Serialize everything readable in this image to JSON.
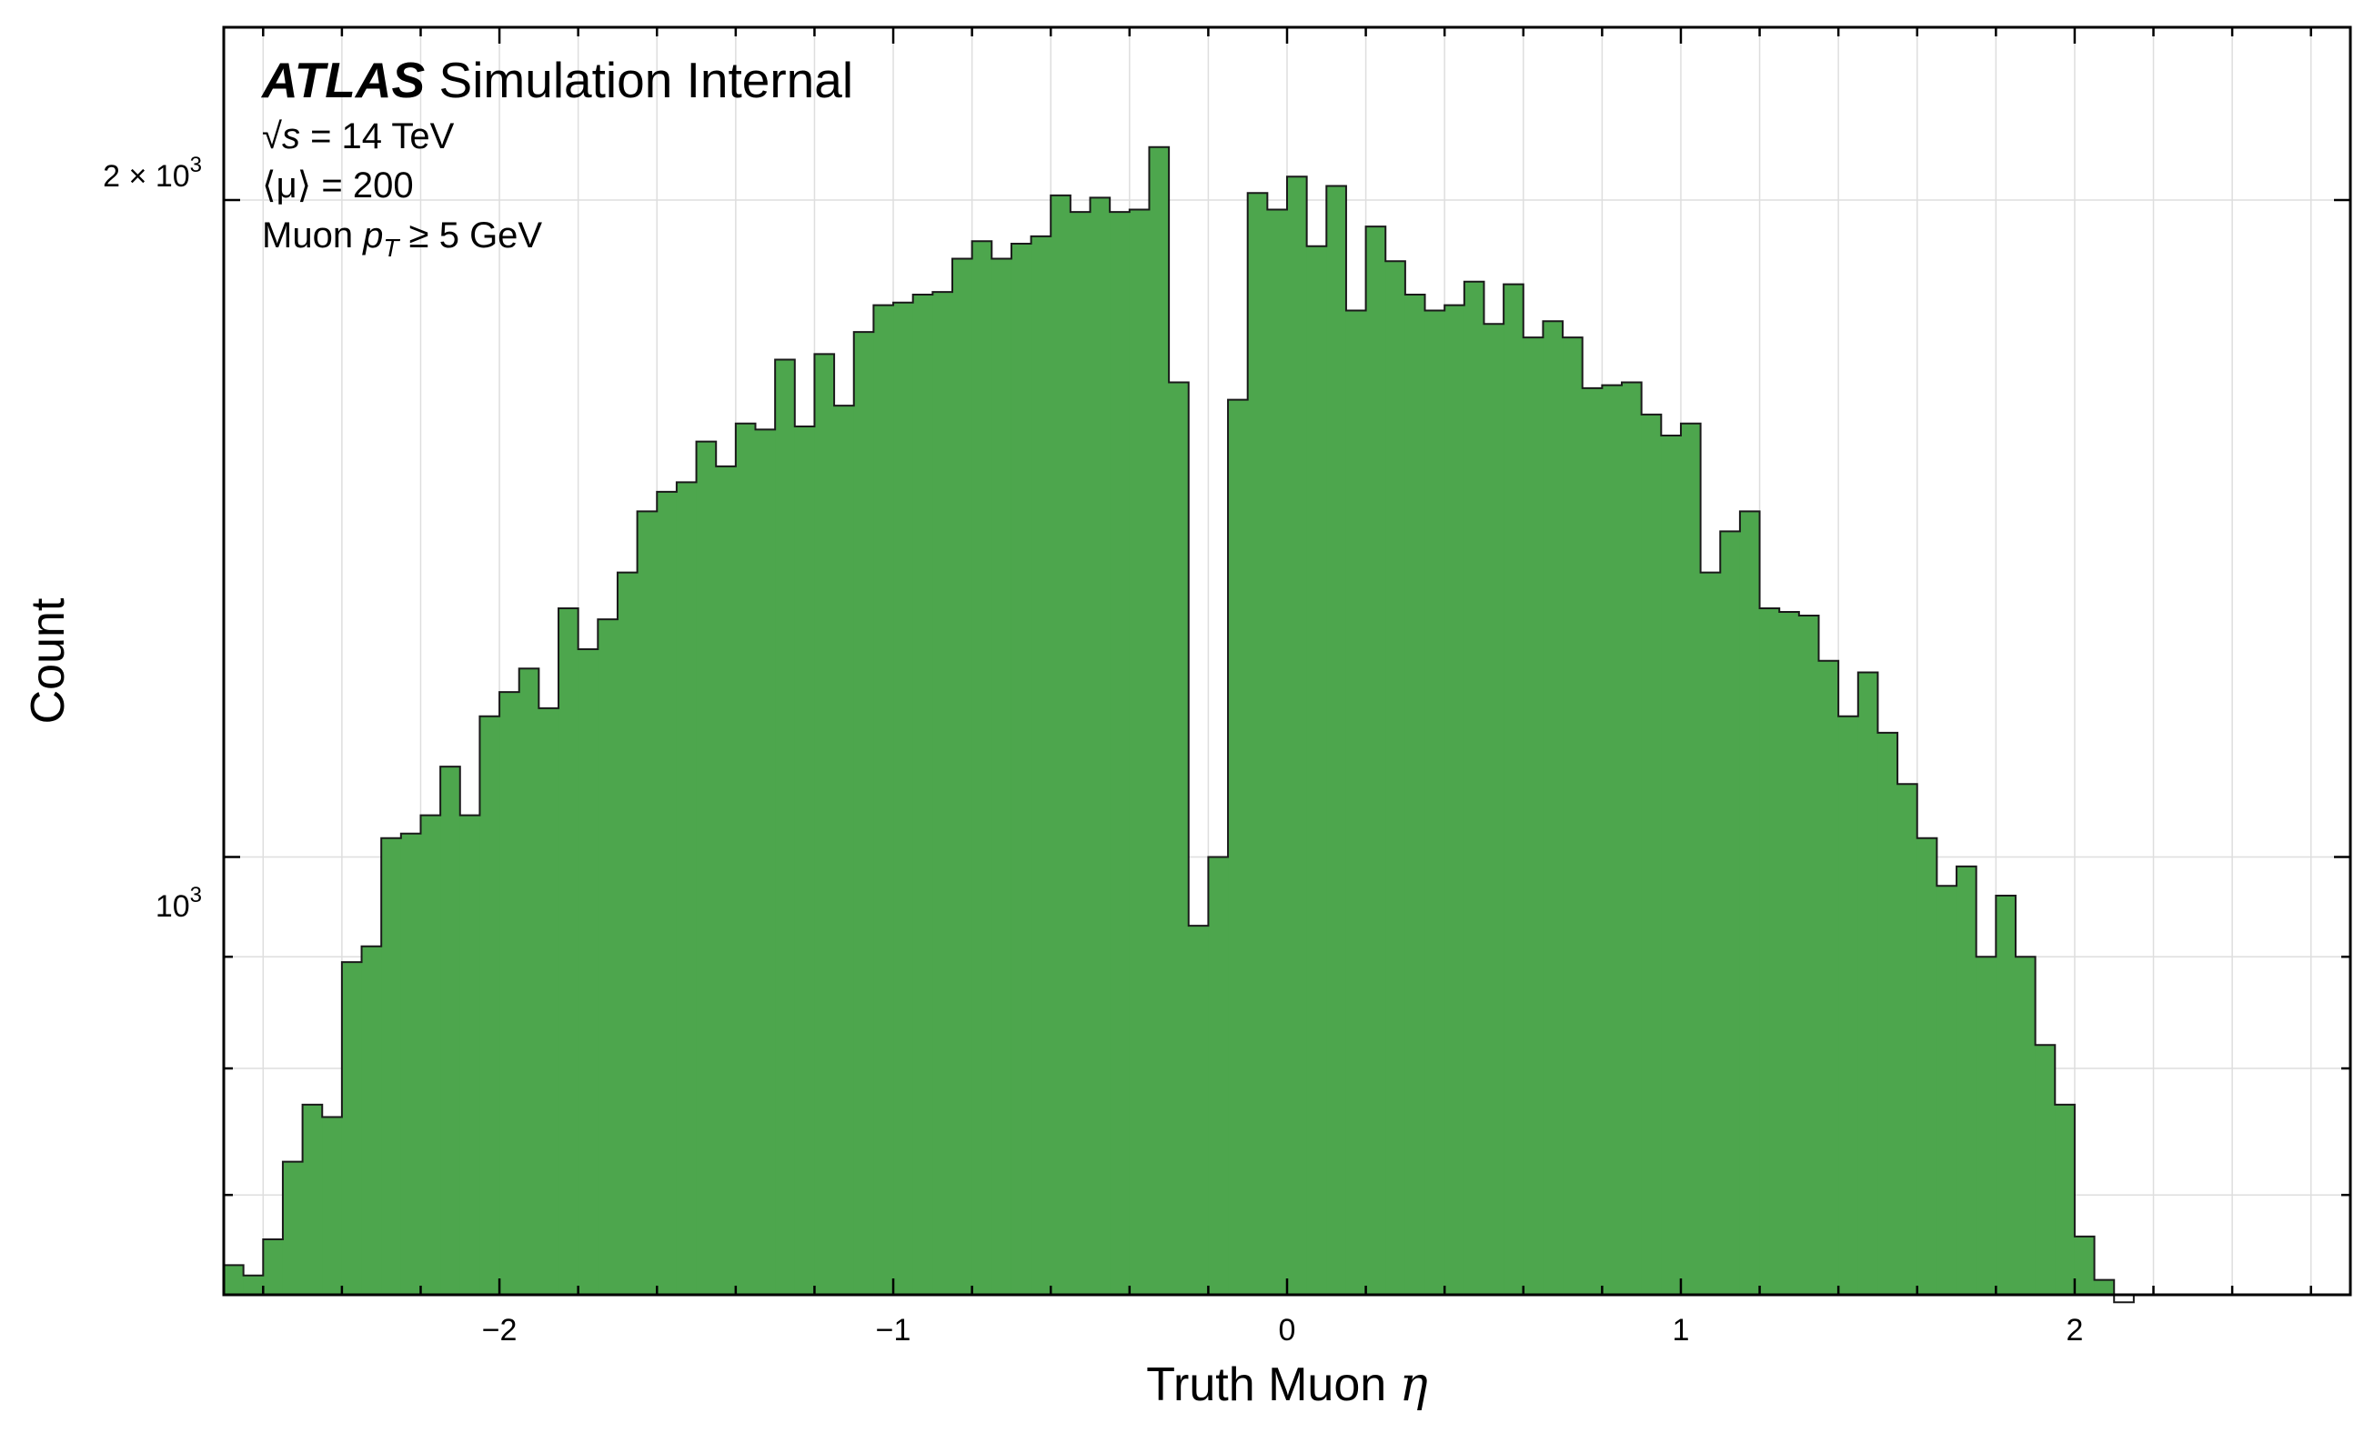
{
  "chart_data": {
    "type": "bar",
    "histogram": true,
    "title": "",
    "xlabel": "Truth Muon",
    "xlabel_symbol": "η",
    "ylabel": "Count",
    "yscale": "log",
    "xlim": [
      -2.7,
      2.7
    ],
    "ylim": [
      630,
      2400
    ],
    "x_ticks": [
      -2,
      -1,
      0,
      1,
      2
    ],
    "x_tick_labels": [
      "−2",
      "−1",
      "0",
      "1",
      "2"
    ],
    "y_tick_labels": [
      {
        "value": 1000,
        "mantissa": "",
        "base": "10",
        "exp": "3"
      },
      {
        "value": 2000,
        "mantissa": "2 × ",
        "base": "10",
        "exp": "3"
      }
    ],
    "grid": true,
    "bin_edges_start": -2.7,
    "bin_width": 0.05,
    "bar_color": "#4da64d",
    "edge_color": "#1a1a1a",
    "values": [
      650,
      643,
      668,
      725,
      770,
      760,
      895,
      910,
      1020,
      1025,
      1045,
      1100,
      1045,
      1160,
      1190,
      1220,
      1170,
      1300,
      1245,
      1285,
      1350,
      1440,
      1470,
      1485,
      1550,
      1510,
      1580,
      1570,
      1690,
      1575,
      1700,
      1610,
      1740,
      1790,
      1795,
      1810,
      1815,
      1880,
      1915,
      1880,
      1910,
      1925,
      2010,
      1975,
      2005,
      1975,
      1980,
      2115,
      1650,
      930,
      1000,
      1620,
      2015,
      1980,
      2050,
      1905,
      2030,
      1780,
      1945,
      1875,
      1810,
      1780,
      1790,
      1835,
      1755,
      1830,
      1730,
      1760,
      1730,
      1640,
      1645,
      1650,
      1595,
      1560,
      1580,
      1350,
      1410,
      1440,
      1300,
      1295,
      1290,
      1230,
      1160,
      1215,
      1140,
      1080,
      1020,
      970,
      990,
      900,
      960,
      900,
      820,
      770,
      670,
      640,
      625
    ],
    "annotations": {
      "experiment": "ATLAS",
      "status": "Simulation Internal",
      "energy_symbol": "√s",
      "energy": " = 14 TeV",
      "pileup_symbol": "⟨μ⟩",
      "pileup": " = 200",
      "cut_prefix": "Muon ",
      "cut_symbol": "p",
      "cut_subscript": "T",
      "cut_suffix": " ≥ 5 GeV"
    }
  }
}
